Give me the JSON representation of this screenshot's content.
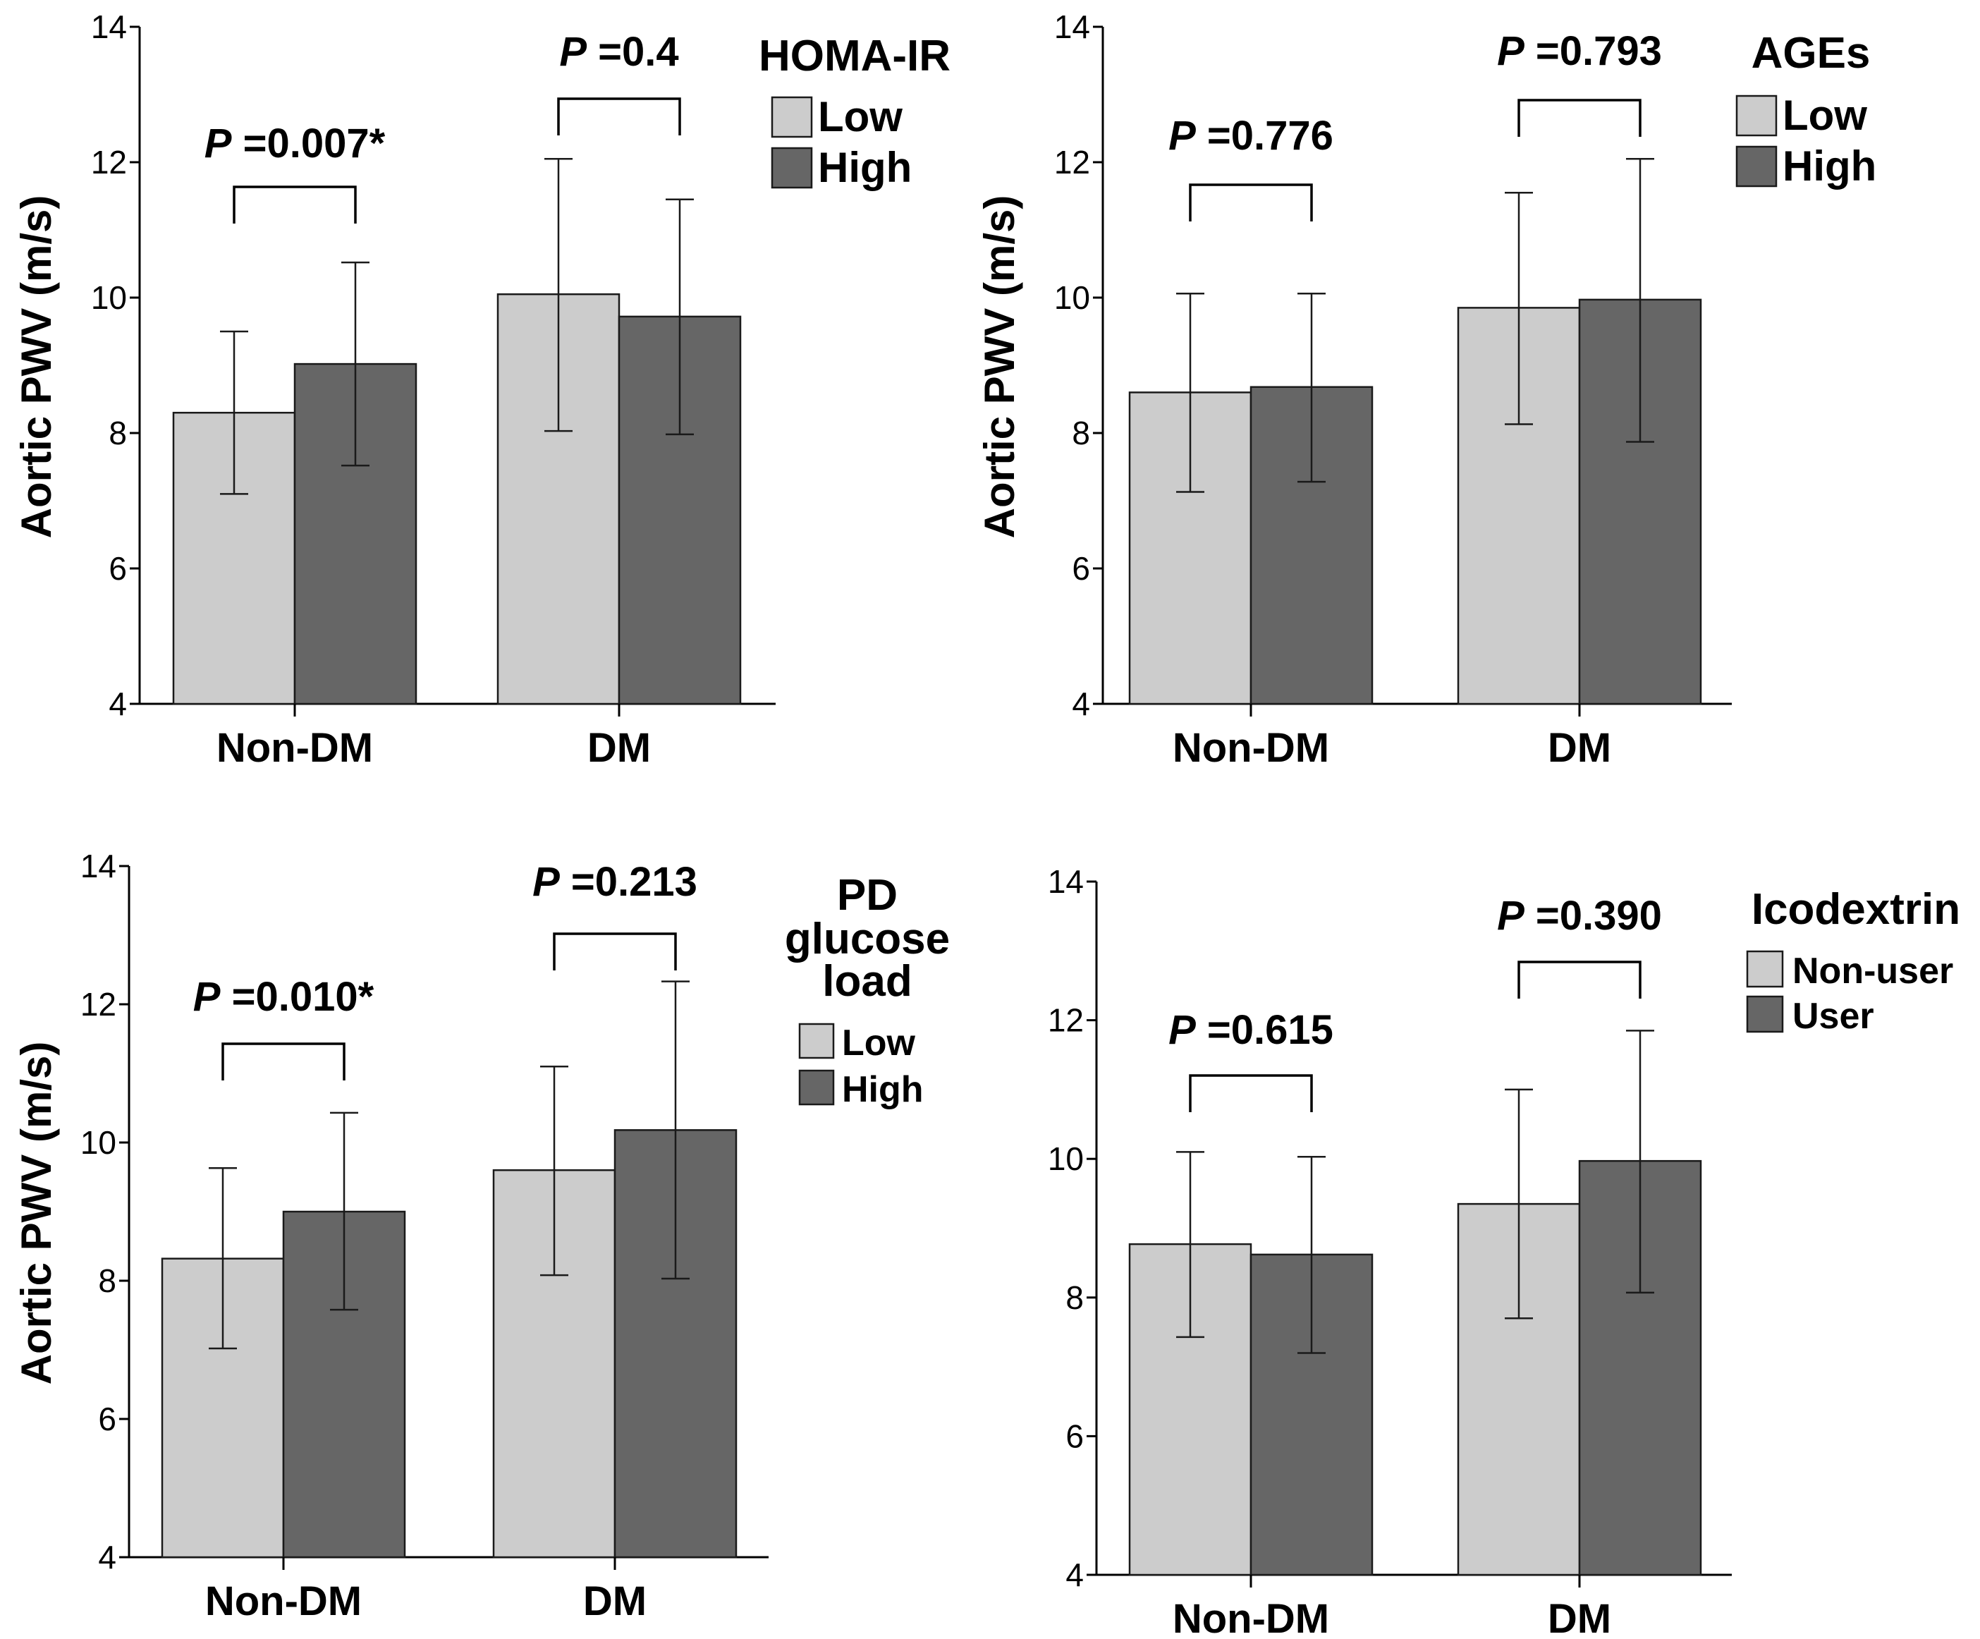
{
  "colors": {
    "low": "#cccccc",
    "high": "#666666",
    "axis": "#000000"
  },
  "chart_data": [
    {
      "type": "bar",
      "title": "",
      "ylabel": "Aortic PWV (m/s)",
      "xlabel": "",
      "ylim": [
        4,
        14
      ],
      "yticks": [
        "4",
        "6",
        "8",
        "10",
        "12",
        "14"
      ],
      "categories": [
        "Non-DM",
        "DM"
      ],
      "legend_title": [
        "HOMA-IR"
      ],
      "legend_position": "top-right",
      "series": [
        {
          "name": "Low",
          "values": [
            8.3,
            10.05
          ],
          "err_low": [
            7.1,
            8.03
          ],
          "err_high": [
            9.5,
            12.05
          ]
        },
        {
          "name": "High",
          "values": [
            9.02,
            9.72
          ],
          "err_low": [
            7.52,
            7.98
          ],
          "err_high": [
            10.52,
            11.45
          ]
        }
      ],
      "annotations": [
        {
          "category": "Non-DM",
          "p_prefix": "P",
          "p_value": " =0.007*"
        },
        {
          "category": "DM",
          "p_prefix": "P",
          "p_value": " =0.4"
        }
      ]
    },
    {
      "type": "bar",
      "title": "",
      "ylabel": "Aortic PWV (m/s)",
      "xlabel": "",
      "ylim": [
        4,
        14
      ],
      "yticks": [
        "4",
        "6",
        "8",
        "10",
        "12",
        "14"
      ],
      "categories": [
        "Non-DM",
        "DM"
      ],
      "legend_title": [
        "AGEs"
      ],
      "legend_position": "top-right",
      "series": [
        {
          "name": "Low",
          "values": [
            8.6,
            9.85
          ],
          "err_low": [
            7.13,
            8.13
          ],
          "err_high": [
            10.06,
            11.55
          ]
        },
        {
          "name": "High",
          "values": [
            8.68,
            9.97
          ],
          "err_low": [
            7.28,
            7.87
          ],
          "err_high": [
            10.06,
            12.05
          ]
        }
      ],
      "annotations": [
        {
          "category": "Non-DM",
          "p_prefix": "P",
          "p_value": " =0.776"
        },
        {
          "category": "DM",
          "p_prefix": "P",
          "p_value": " =0.793"
        }
      ]
    },
    {
      "type": "bar",
      "title": "",
      "ylabel": "Aortic PWV (m/s)",
      "xlabel": "",
      "ylim": [
        4,
        14
      ],
      "yticks": [
        "4",
        "6",
        "8",
        "10",
        "12",
        "14"
      ],
      "categories": [
        "Non-DM",
        "DM"
      ],
      "legend_title": [
        "PD",
        "glucose",
        "load"
      ],
      "legend_position": "top-right",
      "series": [
        {
          "name": "Low",
          "values": [
            8.32,
            9.6
          ],
          "err_low": [
            7.02,
            8.08
          ],
          "err_high": [
            9.63,
            11.1
          ]
        },
        {
          "name": "High",
          "values": [
            9.0,
            10.18
          ],
          "err_low": [
            7.58,
            8.03
          ],
          "err_high": [
            10.43,
            12.33
          ]
        }
      ],
      "annotations": [
        {
          "category": "Non-DM",
          "p_prefix": "P",
          "p_value": " =0.010*"
        },
        {
          "category": "DM",
          "p_prefix": "P",
          "p_value": " =0.213"
        }
      ]
    },
    {
      "type": "bar",
      "title": "",
      "ylabel": "",
      "xlabel": "",
      "ylim": [
        4,
        14
      ],
      "yticks": [
        "4",
        "6",
        "8",
        "10",
        "12",
        "14"
      ],
      "categories": [
        "Non-DM",
        "DM"
      ],
      "legend_title": [
        "Icodextrin"
      ],
      "legend_position": "top-right",
      "series": [
        {
          "name": "Non-user",
          "values": [
            8.77,
            9.35
          ],
          "err_low": [
            7.43,
            7.7
          ],
          "err_high": [
            10.1,
            11.0
          ]
        },
        {
          "name": "User",
          "values": [
            8.62,
            9.97
          ],
          "err_low": [
            7.2,
            8.07
          ],
          "err_high": [
            10.03,
            11.85
          ]
        }
      ],
      "annotations": [
        {
          "category": "Non-DM",
          "p_prefix": "P",
          "p_value": " =0.615"
        },
        {
          "category": "DM",
          "p_prefix": "P",
          "p_value": " =0.390"
        }
      ]
    }
  ]
}
